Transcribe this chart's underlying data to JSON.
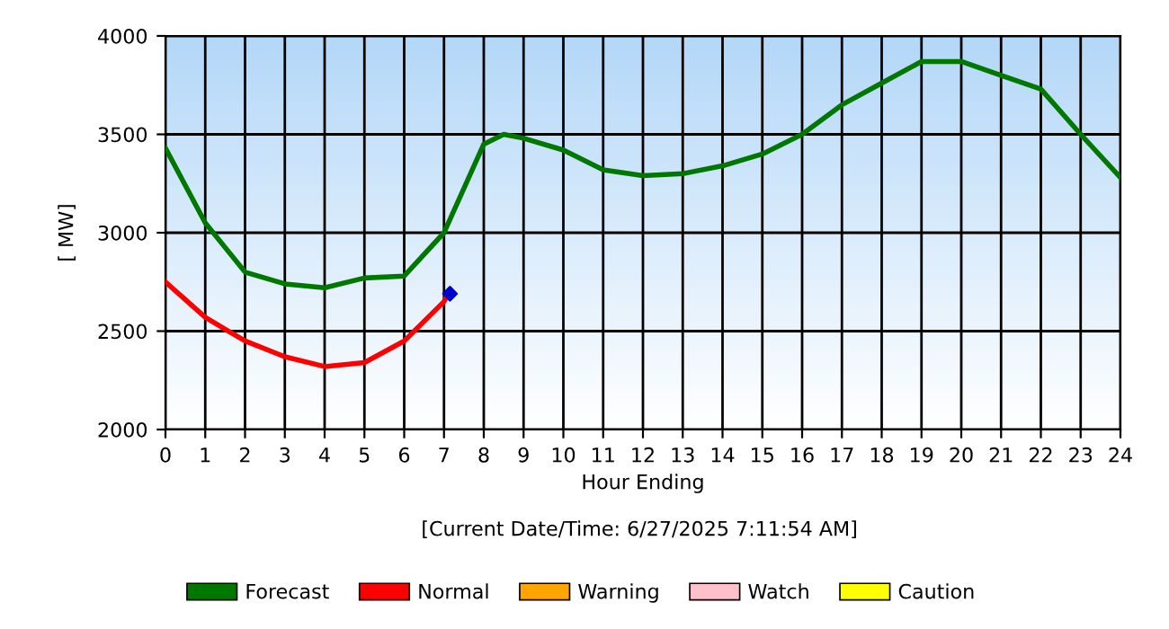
{
  "chart_data": {
    "type": "line",
    "xlabel": "Hour Ending",
    "ylabel": "[ MW]",
    "annotations": [
      "[Current Date/Time: 6/27/2025 7:11:54 AM]"
    ],
    "xlim": [
      0,
      24
    ],
    "xticks": [
      0,
      1,
      2,
      3,
      4,
      5,
      6,
      7,
      8,
      9,
      10,
      11,
      12,
      13,
      14,
      15,
      16,
      17,
      18,
      19,
      20,
      21,
      22,
      23,
      24
    ],
    "ylim": [
      2000,
      4000
    ],
    "yticks": [
      2000,
      2500,
      3000,
      3500,
      4000
    ],
    "grid": true,
    "legend": "bottom",
    "marker": "none",
    "series": [
      {
        "name": "Forecast",
        "color": "#007800",
        "x": [
          0,
          1,
          2,
          3,
          4,
          5,
          6,
          7,
          8,
          8.5,
          9,
          10,
          11,
          12,
          13,
          14,
          15,
          16,
          17,
          18,
          19,
          20,
          21,
          22,
          23,
          24
        ],
        "values": [
          3430,
          3050,
          2800,
          2740,
          2720,
          2770,
          2780,
          3000,
          3450,
          3500,
          3480,
          3420,
          3320,
          3290,
          3300,
          3340,
          3400,
          3500,
          3650,
          3760,
          3870,
          3870,
          3800,
          3730,
          3500,
          3280
        ]
      },
      {
        "name": "Normal",
        "color": "#ff0000",
        "x": [
          0,
          1,
          2,
          3,
          4,
          5,
          6,
          7,
          7.1
        ],
        "values": [
          2750,
          2570,
          2450,
          2370,
          2320,
          2340,
          2450,
          2650,
          2690
        ]
      },
      {
        "name": "Warning",
        "color": "#ffa500"
      },
      {
        "name": "Watch",
        "color": "#ffc0cb"
      },
      {
        "name": "Caution",
        "color": "#ffff00"
      },
      {
        "type": "scatter",
        "color": "#0000cc",
        "marker": "diamond",
        "x": [
          7.15
        ],
        "values": [
          2690
        ]
      }
    ]
  }
}
